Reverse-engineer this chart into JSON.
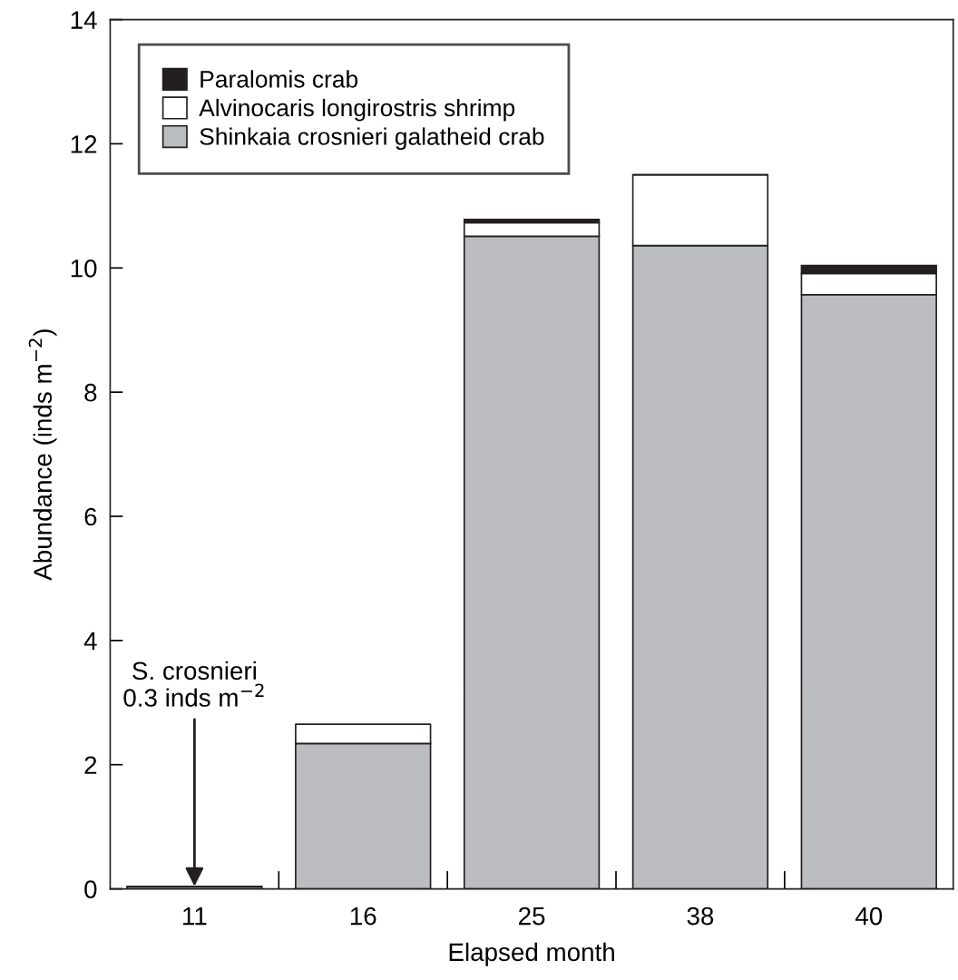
{
  "chart_data": {
    "type": "bar",
    "stacked": true,
    "xlabel": "Elapsed month",
    "ylabel": "Abundance (inds m$^{−2}$)",
    "categories": [
      "11",
      "16",
      "25",
      "38",
      "40"
    ],
    "series": [
      {
        "name": "Shinkaia crosnieri galatheid crab",
        "color": "#bcbdc0",
        "values": [
          0.04,
          2.34,
          10.51,
          10.36,
          9.57
        ]
      },
      {
        "name": "Alvinocaris longirostris shrimp",
        "color": "#ffffff",
        "values": [
          0,
          0.31,
          0.22,
          1.14,
          0.34
        ]
      },
      {
        "name": "Paralomis crab",
        "color": "#231f20",
        "values": [
          0,
          0,
          0.05,
          0,
          0.13
        ]
      }
    ],
    "ylim": [
      0,
      14
    ],
    "yticks": [
      0,
      2,
      4,
      6,
      8,
      10,
      12,
      14
    ],
    "grid": false,
    "legend": "top left",
    "annotations": [
      {
        "text": "S. crosnieri\n0.3 inds m$^{−2}$",
        "x": "11",
        "y": 0.04
      }
    ]
  }
}
